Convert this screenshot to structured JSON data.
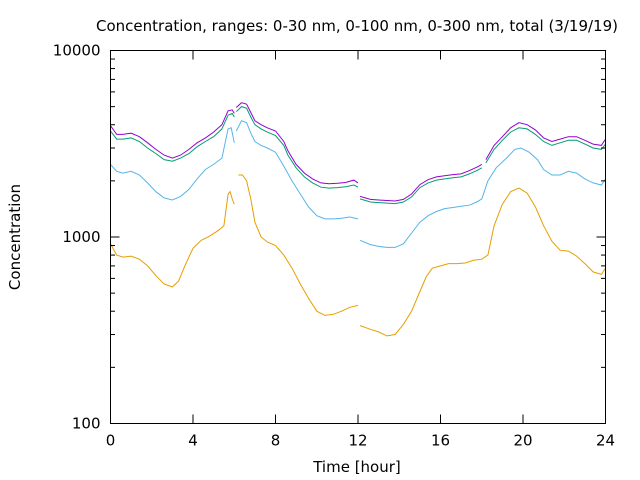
{
  "chart_data": {
    "type": "line",
    "title": "Concentration, ranges: 0-30 nm, 0-100 nm, 0-300 nm, total (3/19/19)",
    "xlabel": "Time [hour]",
    "ylabel": "Concentration",
    "xlim": [
      0,
      24
    ],
    "ylim": [
      100,
      10000
    ],
    "yscale": "log",
    "grid": false,
    "legend": "none",
    "x_ticks": [
      "0",
      "4",
      "8",
      "12",
      "16",
      "20",
      "24"
    ],
    "y_ticks": [
      "100",
      "1000",
      "10000"
    ],
    "series": [
      {
        "color": "#e69f00",
        "points": [
          [
            0,
            920
          ],
          [
            0.3,
            800
          ],
          [
            0.6,
            780
          ],
          [
            1,
            790
          ],
          [
            1.4,
            760
          ],
          [
            1.8,
            700
          ],
          [
            2.2,
            620
          ],
          [
            2.6,
            560
          ],
          [
            3,
            540
          ],
          [
            3.3,
            580
          ],
          [
            3.6,
            700
          ],
          [
            4,
            870
          ],
          [
            4.4,
            960
          ],
          [
            4.8,
            1010
          ],
          [
            5.2,
            1080
          ],
          [
            5.5,
            1150
          ],
          [
            5.7,
            1700
          ],
          [
            5.8,
            1750
          ],
          [
            5.9,
            1600
          ],
          [
            6,
            1500
          ],
          null,
          [
            6.2,
            2150
          ],
          [
            6.4,
            2150
          ],
          [
            6.6,
            2000
          ],
          [
            6.8,
            1600
          ],
          [
            7,
            1200
          ],
          [
            7.3,
            1000
          ],
          [
            7.6,
            940
          ],
          [
            8,
            900
          ],
          [
            8.4,
            800
          ],
          [
            8.8,
            680
          ],
          [
            9.2,
            560
          ],
          [
            9.6,
            470
          ],
          [
            10,
            400
          ],
          [
            10.4,
            380
          ],
          [
            10.8,
            385
          ],
          [
            11.2,
            400
          ],
          [
            11.6,
            420
          ],
          [
            12,
            430
          ],
          null,
          [
            12.1,
            335
          ],
          [
            12.6,
            320
          ],
          [
            13,
            310
          ],
          [
            13.4,
            295
          ],
          [
            13.8,
            300
          ],
          [
            14.2,
            340
          ],
          [
            14.6,
            400
          ],
          [
            15,
            510
          ],
          [
            15.3,
            610
          ],
          [
            15.6,
            680
          ],
          [
            16,
            700
          ],
          [
            16.4,
            720
          ],
          [
            16.8,
            720
          ],
          [
            17.2,
            725
          ],
          [
            17.6,
            750
          ],
          [
            18,
            760
          ],
          [
            18.3,
            800
          ],
          [
            18.6,
            1150
          ],
          [
            19,
            1500
          ],
          [
            19.4,
            1750
          ],
          [
            19.8,
            1830
          ],
          [
            20.2,
            1720
          ],
          [
            20.6,
            1450
          ],
          [
            21,
            1150
          ],
          [
            21.4,
            950
          ],
          [
            21.8,
            850
          ],
          [
            22.2,
            840
          ],
          [
            22.6,
            790
          ],
          [
            23,
            720
          ],
          [
            23.4,
            650
          ],
          [
            23.8,
            630
          ],
          [
            24,
            680
          ]
        ]
      },
      {
        "color": "#56b4e9",
        "points": [
          [
            0,
            2450
          ],
          [
            0.3,
            2250
          ],
          [
            0.6,
            2200
          ],
          [
            1,
            2250
          ],
          [
            1.4,
            2150
          ],
          [
            1.8,
            1950
          ],
          [
            2.2,
            1750
          ],
          [
            2.6,
            1620
          ],
          [
            3,
            1580
          ],
          [
            3.4,
            1650
          ],
          [
            3.8,
            1800
          ],
          [
            4.2,
            2050
          ],
          [
            4.6,
            2300
          ],
          [
            5,
            2450
          ],
          [
            5.4,
            2650
          ],
          [
            5.7,
            3800
          ],
          [
            5.85,
            3850
          ],
          [
            6,
            3200
          ],
          null,
          [
            6.1,
            3700
          ],
          [
            6.35,
            4200
          ],
          [
            6.6,
            4100
          ],
          [
            6.8,
            3600
          ],
          [
            7,
            3250
          ],
          [
            7.3,
            3100
          ],
          [
            7.6,
            3000
          ],
          [
            8,
            2850
          ],
          [
            8.4,
            2400
          ],
          [
            8.8,
            2000
          ],
          [
            9.2,
            1700
          ],
          [
            9.6,
            1450
          ],
          [
            10,
            1300
          ],
          [
            10.4,
            1250
          ],
          [
            10.8,
            1250
          ],
          [
            11.2,
            1260
          ],
          [
            11.6,
            1280
          ],
          [
            12,
            1250
          ],
          null,
          [
            12.1,
            960
          ],
          [
            12.6,
            910
          ],
          [
            13,
            890
          ],
          [
            13.4,
            880
          ],
          [
            13.8,
            880
          ],
          [
            14.2,
            920
          ],
          [
            14.6,
            1050
          ],
          [
            15,
            1200
          ],
          [
            15.4,
            1300
          ],
          [
            15.8,
            1370
          ],
          [
            16.2,
            1420
          ],
          [
            16.6,
            1440
          ],
          [
            17,
            1460
          ],
          [
            17.4,
            1480
          ],
          [
            17.8,
            1550
          ],
          [
            18,
            1600
          ],
          [
            18.3,
            2000
          ],
          [
            18.7,
            2350
          ],
          [
            19.2,
            2650
          ],
          [
            19.6,
            2950
          ],
          [
            19.9,
            3000
          ],
          [
            20.3,
            2850
          ],
          [
            20.7,
            2600
          ],
          [
            21,
            2300
          ],
          [
            21.4,
            2150
          ],
          [
            21.8,
            2150
          ],
          [
            22.2,
            2250
          ],
          [
            22.6,
            2200
          ],
          [
            23,
            2050
          ],
          [
            23.4,
            1950
          ],
          [
            23.8,
            1900
          ],
          [
            24,
            2050
          ]
        ]
      },
      {
        "color": "#009e73",
        "points": [
          [
            0,
            3700
          ],
          [
            0.3,
            3350
          ],
          [
            0.6,
            3350
          ],
          [
            1,
            3400
          ],
          [
            1.4,
            3250
          ],
          [
            1.8,
            3000
          ],
          [
            2.2,
            2800
          ],
          [
            2.6,
            2600
          ],
          [
            3,
            2550
          ],
          [
            3.4,
            2650
          ],
          [
            3.8,
            2800
          ],
          [
            4.2,
            3050
          ],
          [
            4.6,
            3250
          ],
          [
            5,
            3450
          ],
          [
            5.4,
            3800
          ],
          [
            5.7,
            4500
          ],
          [
            5.9,
            4600
          ],
          [
            6,
            4400
          ],
          null,
          [
            6.1,
            4700
          ],
          [
            6.35,
            5000
          ],
          [
            6.6,
            4900
          ],
          [
            6.8,
            4400
          ],
          [
            7,
            4000
          ],
          [
            7.3,
            3800
          ],
          [
            7.6,
            3650
          ],
          [
            8,
            3500
          ],
          [
            8.4,
            3100
          ],
          [
            8.6,
            2750
          ],
          [
            9,
            2350
          ],
          [
            9.4,
            2100
          ],
          [
            9.8,
            1950
          ],
          [
            10.2,
            1850
          ],
          [
            10.6,
            1830
          ],
          [
            11,
            1840
          ],
          [
            11.4,
            1860
          ],
          [
            11.8,
            1900
          ],
          [
            12,
            1850
          ],
          null,
          [
            12.1,
            1600
          ],
          [
            12.6,
            1540
          ],
          [
            13,
            1530
          ],
          [
            13.4,
            1520
          ],
          [
            13.8,
            1510
          ],
          [
            14.2,
            1540
          ],
          [
            14.6,
            1640
          ],
          [
            15,
            1840
          ],
          [
            15.4,
            1950
          ],
          [
            15.8,
            2020
          ],
          [
            16.2,
            2050
          ],
          [
            16.6,
            2080
          ],
          [
            17,
            2100
          ],
          [
            17.4,
            2180
          ],
          [
            17.8,
            2280
          ],
          [
            18,
            2350
          ],
          null,
          [
            18.2,
            2500
          ],
          [
            18.6,
            2950
          ],
          [
            19,
            3300
          ],
          [
            19.4,
            3650
          ],
          [
            19.8,
            3850
          ],
          [
            20.2,
            3800
          ],
          [
            20.6,
            3550
          ],
          [
            21,
            3250
          ],
          [
            21.4,
            3100
          ],
          [
            21.8,
            3200
          ],
          [
            22.2,
            3300
          ],
          [
            22.6,
            3300
          ],
          [
            23,
            3150
          ],
          [
            23.4,
            3000
          ],
          [
            23.8,
            2950
          ],
          [
            24,
            3150
          ]
        ]
      },
      {
        "color": "#9400d3",
        "points": [
          [
            0,
            3950
          ],
          [
            0.3,
            3550
          ],
          [
            0.6,
            3550
          ],
          [
            1,
            3600
          ],
          [
            1.4,
            3450
          ],
          [
            1.8,
            3200
          ],
          [
            2.2,
            2950
          ],
          [
            2.6,
            2750
          ],
          [
            3,
            2650
          ],
          [
            3.4,
            2750
          ],
          [
            3.8,
            2950
          ],
          [
            4.2,
            3200
          ],
          [
            4.6,
            3400
          ],
          [
            5,
            3650
          ],
          [
            5.4,
            4000
          ],
          [
            5.7,
            4750
          ],
          [
            5.9,
            4800
          ],
          [
            6,
            4600
          ],
          null,
          [
            6.1,
            4950
          ],
          [
            6.35,
            5250
          ],
          [
            6.6,
            5150
          ],
          [
            6.8,
            4650
          ],
          [
            7,
            4200
          ],
          [
            7.3,
            4000
          ],
          [
            7.6,
            3850
          ],
          [
            8,
            3700
          ],
          [
            8.4,
            3250
          ],
          [
            8.6,
            2900
          ],
          [
            9,
            2450
          ],
          [
            9.4,
            2200
          ],
          [
            9.8,
            2050
          ],
          [
            10.2,
            1950
          ],
          [
            10.6,
            1930
          ],
          [
            11,
            1940
          ],
          [
            11.4,
            1960
          ],
          [
            11.8,
            2020
          ],
          [
            12,
            1950
          ],
          null,
          [
            12.1,
            1650
          ],
          [
            12.6,
            1590
          ],
          [
            13,
            1580
          ],
          [
            13.4,
            1570
          ],
          [
            13.8,
            1560
          ],
          [
            14.2,
            1590
          ],
          [
            14.6,
            1700
          ],
          [
            15,
            1910
          ],
          [
            15.4,
            2030
          ],
          [
            15.8,
            2100
          ],
          [
            16.2,
            2130
          ],
          [
            16.6,
            2160
          ],
          [
            17,
            2180
          ],
          [
            17.4,
            2270
          ],
          [
            17.8,
            2380
          ],
          [
            18,
            2450
          ],
          null,
          [
            18.2,
            2600
          ],
          [
            18.6,
            3100
          ],
          [
            19,
            3450
          ],
          [
            19.4,
            3850
          ],
          [
            19.8,
            4100
          ],
          [
            20.2,
            4000
          ],
          [
            20.6,
            3750
          ],
          [
            21,
            3400
          ],
          [
            21.4,
            3250
          ],
          [
            21.8,
            3350
          ],
          [
            22.2,
            3450
          ],
          [
            22.6,
            3450
          ],
          [
            23,
            3300
          ],
          [
            23.4,
            3150
          ],
          [
            23.8,
            3100
          ],
          [
            24,
            3350
          ]
        ]
      }
    ]
  }
}
